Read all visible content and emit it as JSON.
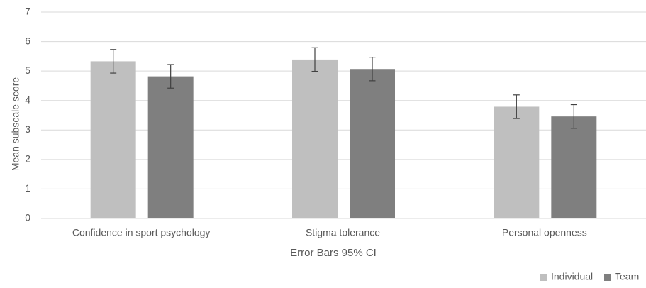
{
  "chart_data": {
    "type": "bar",
    "title": "",
    "xlabel": "Error Bars 95% CI",
    "ylabel": "Mean subscale score",
    "ylim": [
      0,
      7
    ],
    "yticks": [
      "0",
      "1",
      "2",
      "3",
      "4",
      "5",
      "6",
      "7"
    ],
    "grid": true,
    "legend_position": "bottom-right",
    "categories": [
      "Confidence in sport psychology",
      "Stigma tolerance",
      "Personal openness"
    ],
    "series": [
      {
        "name": "Individual",
        "color": "#bfbfbf",
        "values": [
          5.33,
          5.39,
          3.79
        ],
        "ci_low": [
          4.93,
          4.99,
          3.39
        ],
        "ci_high": [
          5.73,
          5.79,
          4.19
        ]
      },
      {
        "name": "Team",
        "color": "#7f7f7f",
        "values": [
          4.82,
          5.07,
          3.46
        ],
        "ci_low": [
          4.42,
          4.67,
          3.06
        ],
        "ci_high": [
          5.22,
          5.47,
          3.86
        ]
      }
    ]
  }
}
